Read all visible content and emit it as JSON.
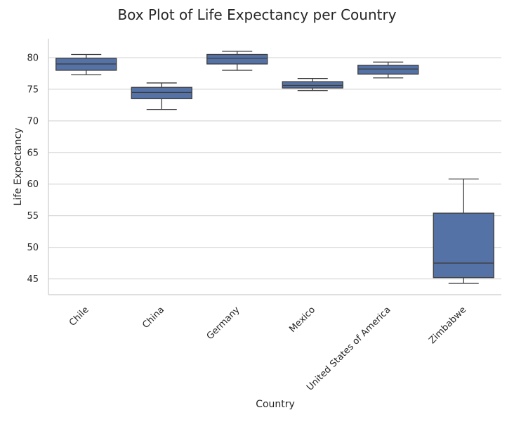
{
  "chart_data": {
    "type": "box",
    "title": "Box Plot of Life Expectancy per Country",
    "xlabel": "Country",
    "ylabel": "Life Expectancy",
    "ylim": [
      42.5,
      83
    ],
    "yticks": [
      45,
      50,
      55,
      60,
      65,
      70,
      75,
      80
    ],
    "grid": "horizontal",
    "categories": [
      "Chile",
      "China",
      "Germany",
      "Mexico",
      "United States of America",
      "Zimbabwe"
    ],
    "boxes": [
      {
        "category": "Chile",
        "min": 77.3,
        "q1": 78.0,
        "median": 79.0,
        "q3": 79.9,
        "max": 80.5
      },
      {
        "category": "China",
        "min": 71.8,
        "q1": 73.5,
        "median": 74.5,
        "q3": 75.3,
        "max": 76.0
      },
      {
        "category": "Germany",
        "min": 78.0,
        "q1": 79.0,
        "median": 79.9,
        "q3": 80.5,
        "max": 81.0
      },
      {
        "category": "Mexico",
        "min": 74.8,
        "q1": 75.2,
        "median": 75.6,
        "q3": 76.2,
        "max": 76.7
      },
      {
        "category": "United States of America",
        "min": 76.8,
        "q1": 77.4,
        "median": 78.2,
        "q3": 78.8,
        "max": 79.3
      },
      {
        "category": "Zimbabwe",
        "min": 44.3,
        "q1": 45.2,
        "median": 47.5,
        "q3": 55.4,
        "max": 60.8
      }
    ],
    "colors": {
      "box_fill": "#5572a6",
      "box_edge": "#3d3d3d",
      "median": "#3d3d3d",
      "grid": "#d9d9d9",
      "spine": "#cccccc"
    }
  }
}
